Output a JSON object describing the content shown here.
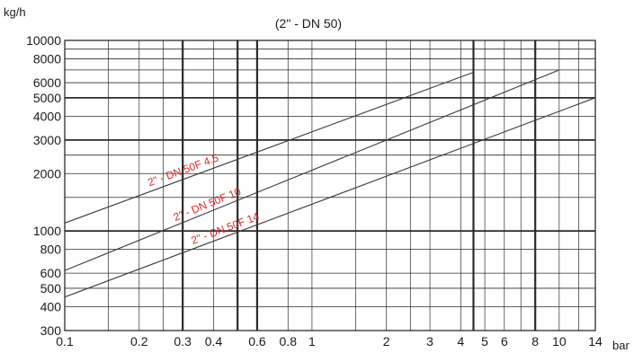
{
  "chart_data": {
    "type": "line",
    "title": "(2\" - DN 50)",
    "ylabel": "kg/h",
    "xunit": "bar",
    "xscale": "log",
    "yscale": "log",
    "xlim": [
      0.1,
      14
    ],
    "ylim": [
      300,
      10000
    ],
    "grid": true,
    "x_ticks": [
      {
        "value": 0.1,
        "label": "0.1"
      },
      {
        "value": 0.2,
        "label": "0.2"
      },
      {
        "value": 0.3,
        "label": "0.3"
      },
      {
        "value": 0.4,
        "label": "0.4"
      },
      {
        "value": 0.6,
        "label": "0.6"
      },
      {
        "value": 0.8,
        "label": "0.8"
      },
      {
        "value": 1,
        "label": "1"
      },
      {
        "value": 2,
        "label": "2"
      },
      {
        "value": 3,
        "label": "3"
      },
      {
        "value": 4,
        "label": "4"
      },
      {
        "value": 5,
        "label": "5"
      },
      {
        "value": 6,
        "label": "6"
      },
      {
        "value": 8,
        "label": "8"
      },
      {
        "value": 10,
        "label": "10"
      },
      {
        "value": 14,
        "label": "14"
      }
    ],
    "y_ticks": [
      {
        "value": 300,
        "label": "300"
      },
      {
        "value": 400,
        "label": "400"
      },
      {
        "value": 500,
        "label": "500"
      },
      {
        "value": 600,
        "label": "600"
      },
      {
        "value": 800,
        "label": "800"
      },
      {
        "value": 1000,
        "label": "1000"
      },
      {
        "value": 2000,
        "label": "2000"
      },
      {
        "value": 3000,
        "label": "3000"
      },
      {
        "value": 4000,
        "label": "4000"
      },
      {
        "value": 5000,
        "label": "5000"
      },
      {
        "value": 6000,
        "label": "6000"
      },
      {
        "value": 8000,
        "label": "8000"
      },
      {
        "value": 10000,
        "label": "10000"
      }
    ],
    "x_grid_minor": [
      0.15,
      0.25,
      1.5,
      2.5,
      7,
      12
    ],
    "x_grid_major": [
      0.3,
      0.5,
      0.6,
      4.5,
      8
    ],
    "y_grid_minor": [
      1500,
      2500,
      7000,
      9000
    ],
    "y_grid_major": [
      1000,
      3000,
      5000
    ],
    "series": [
      {
        "name": "2\" - DN 50F 4.5",
        "x": [
          0.1,
          4.5
        ],
        "y": [
          1100,
          6800
        ]
      },
      {
        "name": "2\" - DN 50F 10",
        "x": [
          0.1,
          10
        ],
        "y": [
          620,
          7000
        ]
      },
      {
        "name": "2\" - DN 50F 14",
        "x": [
          0.1,
          14
        ],
        "y": [
          450,
          5000
        ]
      }
    ],
    "colors": {
      "axis": "#1a1a1a",
      "grid": "#2b2b2b",
      "series_line": "#3a3a3a",
      "series_label": "#d62a2a"
    }
  }
}
